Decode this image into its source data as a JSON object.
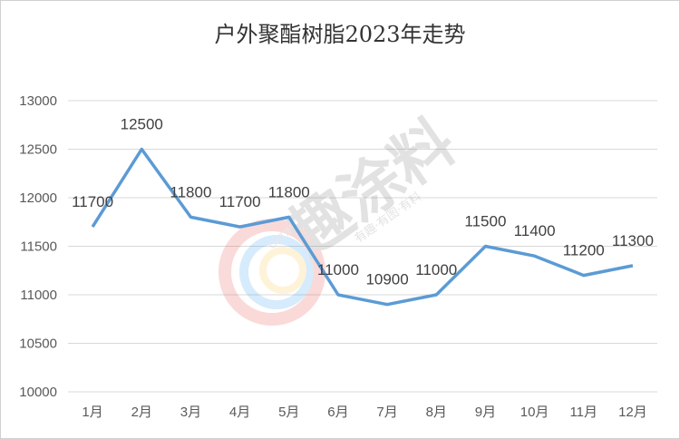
{
  "chart_data": {
    "type": "line",
    "title": "户外聚酯树脂2023年走势",
    "categories": [
      "1月",
      "2月",
      "3月",
      "4月",
      "5月",
      "6月",
      "7月",
      "8月",
      "9月",
      "10月",
      "11月",
      "12月"
    ],
    "series": [
      {
        "values": [
          11700,
          12500,
          11800,
          11700,
          11800,
          11000,
          10900,
          11000,
          11500,
          11400,
          11200,
          11300
        ],
        "color": "#5b9bd5"
      }
    ],
    "yticks": [
      "10000",
      "10500",
      "11000",
      "11500",
      "12000",
      "12500",
      "13000"
    ],
    "ylim": [
      10000,
      13000
    ],
    "grid": true,
    "data_labels": true,
    "xlabel": "",
    "ylabel": ""
  },
  "watermark": {
    "text": "趣涂料",
    "subtext": "有趣·有图·有料",
    "logo_text": "OATING"
  }
}
